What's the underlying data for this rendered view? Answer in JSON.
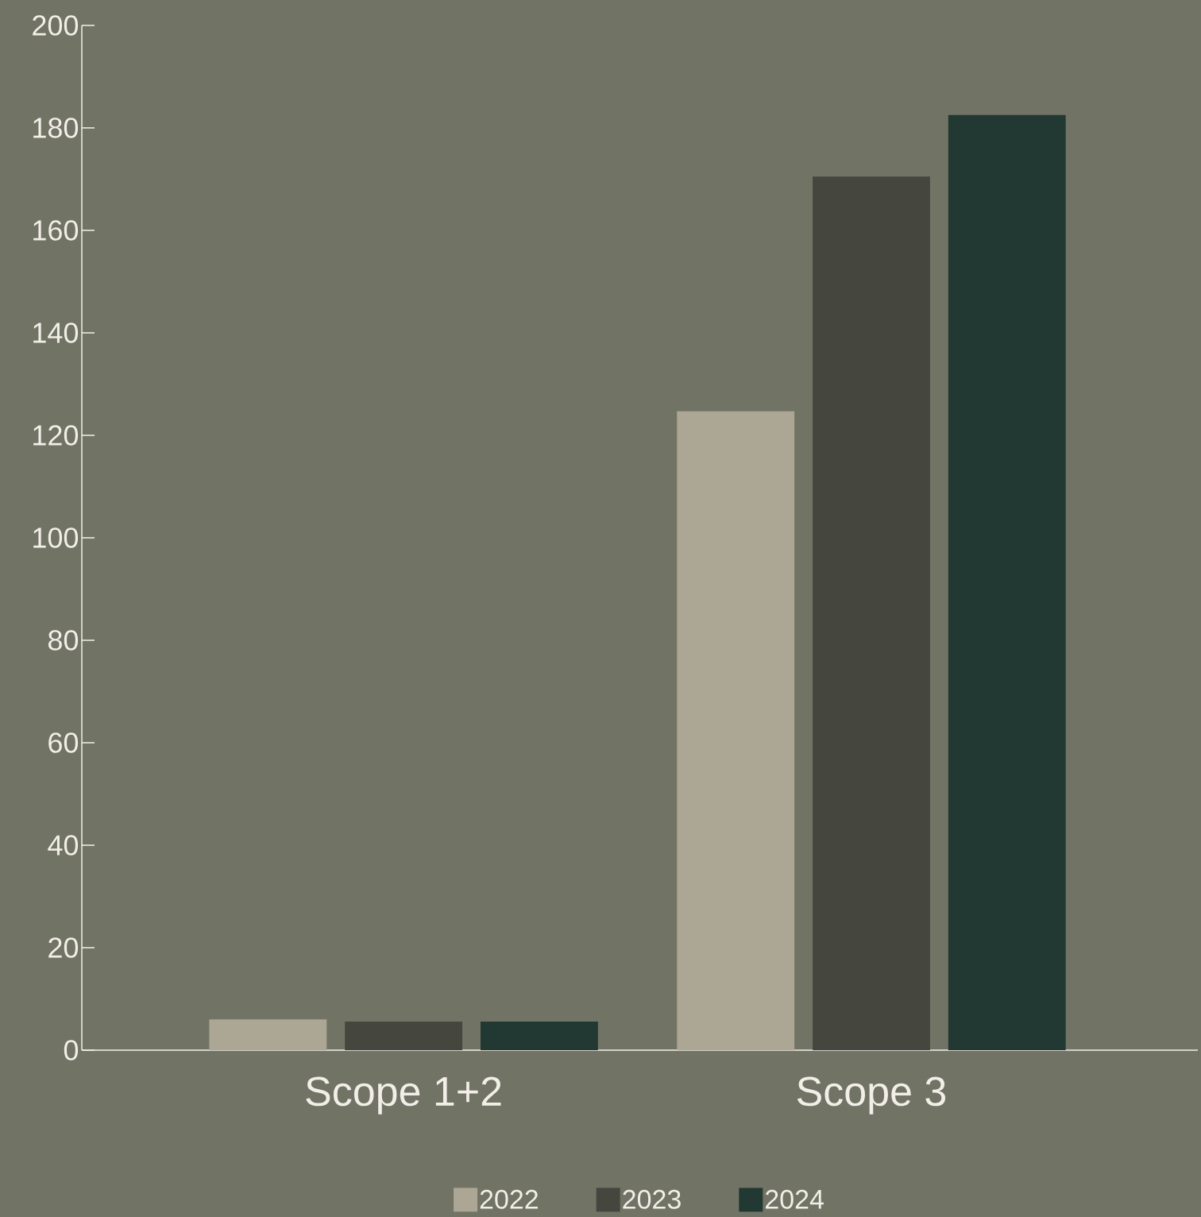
{
  "chart_data": {
    "type": "bar",
    "categories": [
      "Scope 1+2",
      "Scope 3"
    ],
    "series": [
      {
        "name": "2022",
        "color": "#aca694",
        "values": [
          6,
          124.7
        ]
      },
      {
        "name": "2023",
        "color": "#45463e",
        "values": [
          5.6,
          170.5
        ]
      },
      {
        "name": "2024",
        "color": "#223833",
        "values": [
          5.6,
          182.5
        ]
      }
    ],
    "ylim": [
      0,
      200
    ],
    "yticks": [
      0,
      20,
      40,
      60,
      80,
      100,
      120,
      140,
      160,
      180,
      200
    ],
    "legend": "bottom"
  }
}
